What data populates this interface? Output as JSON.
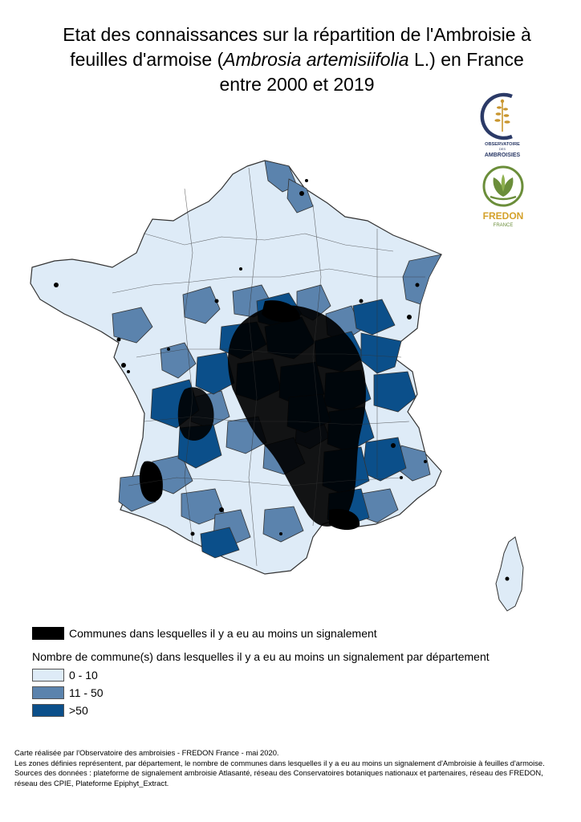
{
  "title": {
    "line1": "Etat des connaissances sur la répartition de l'Ambroisie à",
    "line2_pre": "feuilles d'armoise (",
    "line2_italic": "Ambrosia artemisiifolia",
    "line2_post": " L.) en France",
    "line3": "entre 2000 et 2019"
  },
  "logos": {
    "observatoire": {
      "text_top": "OBSERVATOIRE",
      "text_mid": "DES",
      "text_bottom": "AMBROISIES",
      "color_primary": "#2b3a67",
      "color_accent": "#c9962f"
    },
    "fredon": {
      "name": "FREDON",
      "sub": "FRANCE",
      "color_primary": "#6b8e3a",
      "color_accent": "#d4a12a"
    }
  },
  "map": {
    "type": "choropleth",
    "region": "France métropolitaine par département",
    "colors": {
      "class_0_10": "#deebf7",
      "class_11_50": "#5b83ad",
      "class_gt_50": "#0b4f8a",
      "communes": "#000000",
      "border": "#333333"
    }
  },
  "legend": {
    "communes_label": "Communes dans lesquelles il y a eu au moins un signalement",
    "subtitle": "Nombre de commune(s) dans lesquelles il y a eu au moins un signalement par département",
    "classes": [
      {
        "label": "0 - 10",
        "color": "#deebf7"
      },
      {
        "label": "11 - 50",
        "color": "#5b83ad"
      },
      {
        "label": ">50",
        "color": "#0b4f8a"
      }
    ]
  },
  "credits": {
    "line1": "Carte réalisée par l'Observatoire des ambroisies - FREDON France - mai 2020.",
    "line2": "Les zones définies représentent, par département, le nombre de communes dans lesquelles il y a eu au moins un signalement d'Ambroisie à feuilles d'armoise.",
    "line3": "Sources des données : plateforme de signalement ambroisie Atlasanté, réseau des Conservatoires botaniques nationaux et partenaires, réseau des FREDON,",
    "line4": "réseau des CPIE, Plateforme Epiphyt_Extract."
  }
}
